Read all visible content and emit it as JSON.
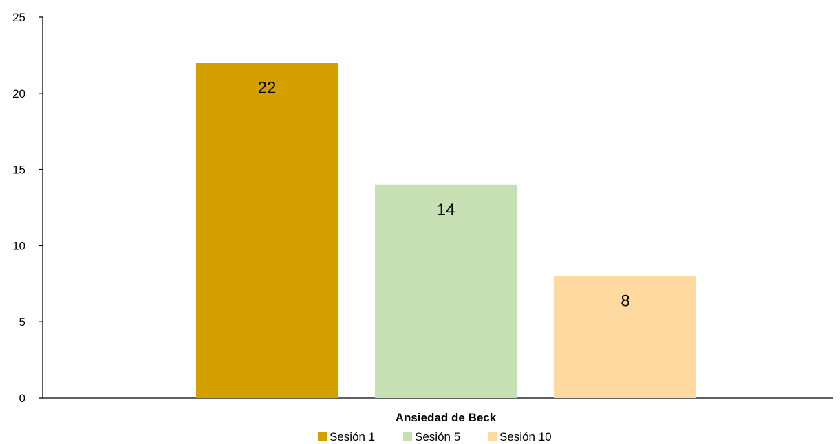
{
  "chart_data": {
    "type": "bar",
    "categories": [
      "Ansiedad de Beck"
    ],
    "series": [
      {
        "name": "Sesión 1",
        "values": [
          22
        ],
        "color": "#d4a000"
      },
      {
        "name": "Sesión 5",
        "values": [
          14
        ],
        "color": "#c6e0b4"
      },
      {
        "name": "Sesión 10",
        "values": [
          8
        ],
        "color": "#fed9a0"
      }
    ],
    "yticks": [
      "0",
      "5",
      "10",
      "15",
      "20",
      "25"
    ],
    "ylim": [
      0,
      25
    ],
    "title": "",
    "xlabel": "",
    "ylabel": "",
    "grid": false,
    "legend": "bottom",
    "data_labels": true,
    "axis_color": "#000000"
  }
}
